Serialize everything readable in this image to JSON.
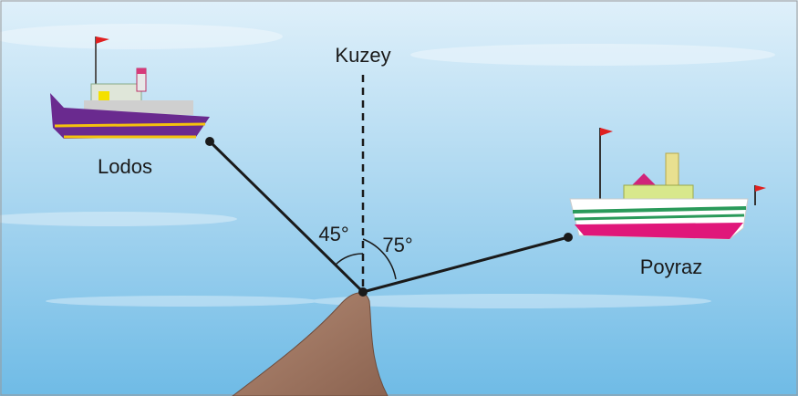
{
  "labels": {
    "north": "Kuzey",
    "left_ship": "Lodos",
    "right_ship": "Poyraz"
  },
  "angles": {
    "left": "45°",
    "right": "75°"
  }
}
